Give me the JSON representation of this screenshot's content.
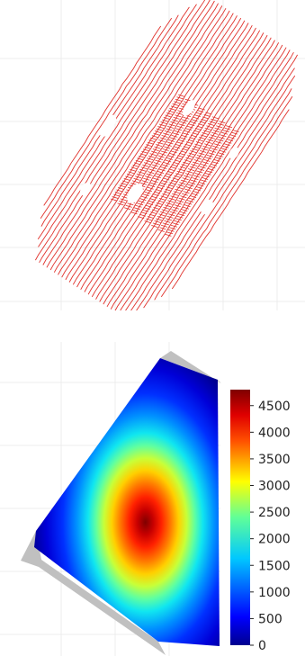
{
  "figure": {
    "panels": [
      {
        "id": "flight-track-panel",
        "description_free": true
      },
      {
        "id": "heatmap-panel"
      }
    ]
  },
  "chart_data": [
    {
      "type": "line",
      "title": "",
      "xlabel": "",
      "ylabel": "",
      "grid": true,
      "line_color": "#e0302a",
      "legend": false
    },
    {
      "type": "heatmap",
      "title": "",
      "xlabel": "",
      "ylabel": "",
      "colormap": "jet",
      "no_data_color": "#c0c0c0",
      "grid": true,
      "colorbar": {
        "placement": "right",
        "range": [
          0,
          4800
        ],
        "ticks": [
          0,
          500,
          1000,
          1500,
          2000,
          2500,
          3000,
          3500,
          4000,
          4500
        ],
        "tick_labels": [
          "0",
          "500",
          "1000",
          "1500",
          "2000",
          "2500",
          "3000",
          "3500",
          "4000",
          "4500"
        ]
      },
      "peak_value": 4700,
      "peak_color": "#7f0000",
      "min_color": "#00008f"
    }
  ]
}
